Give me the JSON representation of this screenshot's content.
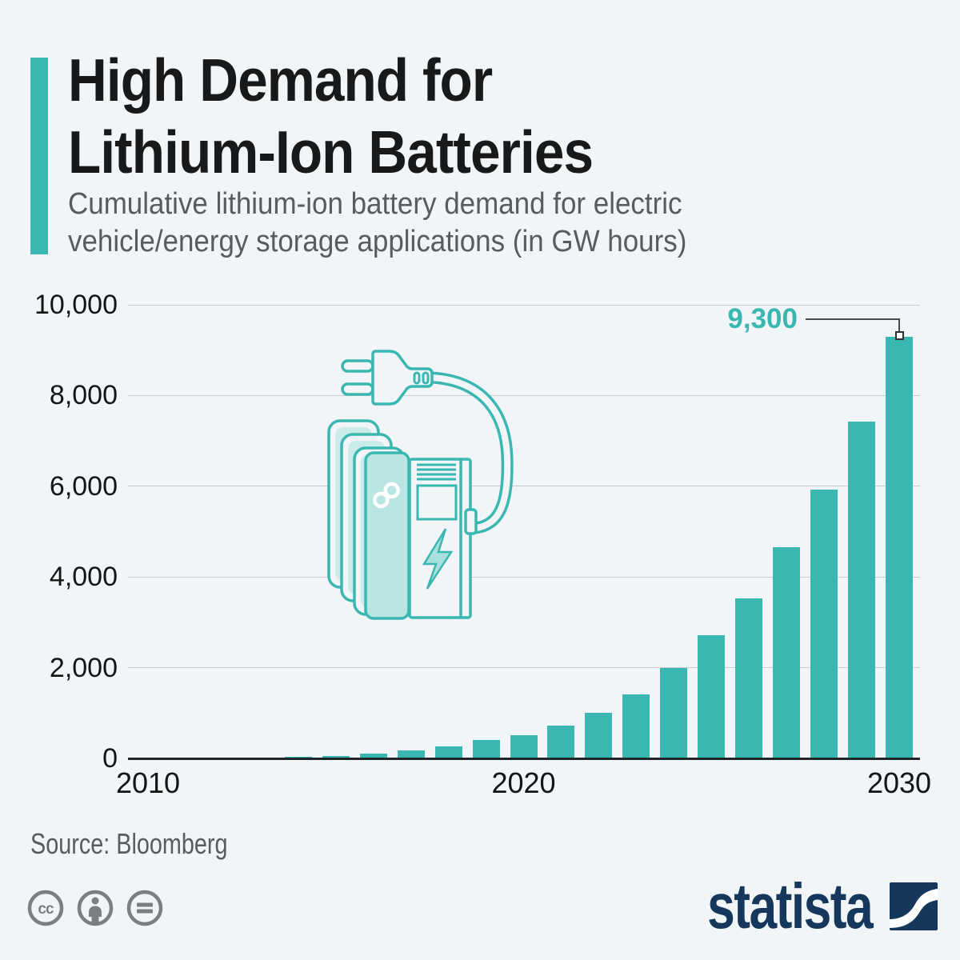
{
  "header": {
    "title_lines": [
      "High Demand for",
      "Lithium-Ion Batteries"
    ],
    "subtitle_lines": [
      "Cumulative lithium-ion battery demand for electric",
      "vehicle/energy storage applications (in GW hours)"
    ]
  },
  "chart_data": {
    "type": "bar",
    "title": "High Demand for Lithium-Ion Batteries",
    "subtitle": "Cumulative lithium-ion battery demand for electric vehicle/energy storage applications (in GW hours)",
    "unit": "GW hours",
    "xlabel": "",
    "ylabel": "",
    "ylim": [
      0,
      10000
    ],
    "grid": true,
    "categories": [
      2010,
      2011,
      2012,
      2013,
      2014,
      2015,
      2016,
      2017,
      2018,
      2019,
      2020,
      2021,
      2022,
      2023,
      2024,
      2025,
      2026,
      2027,
      2028,
      2029,
      2030
    ],
    "values": [
      0,
      0,
      5,
      15,
      30,
      60,
      110,
      170,
      270,
      400,
      520,
      720,
      1000,
      1410,
      2000,
      2710,
      3530,
      4650,
      5930,
      7420,
      9300
    ],
    "y_tick_values": [
      0,
      2000,
      4000,
      6000,
      8000,
      10000
    ],
    "y_tick_labels": [
      "0",
      "2,000",
      "4,000",
      "6,000",
      "8,000",
      "10,000"
    ],
    "x_ticks": [
      {
        "label": "2010",
        "year": 2010
      },
      {
        "label": "2020",
        "year": 2020
      },
      {
        "label": "2030",
        "year": 2030
      }
    ],
    "annotation": {
      "label": "9,300",
      "year": 2030,
      "value": 9300
    },
    "legend": null
  },
  "footer": {
    "source": "Source: Bloomberg",
    "brand_name": "statista"
  },
  "icons": {
    "license": [
      "cc-icon",
      "attribution-icon",
      "equal-sign-icon"
    ],
    "illustration": [
      "power-plug-icon",
      "charging-cable",
      "battery-stack-icon",
      "infinity-icon",
      "charging-station-icon",
      "lightning-bolt-icon"
    ],
    "brand": [
      "statista-logo-icon"
    ]
  },
  "colors": {
    "background": "#f1f5f8",
    "accent_teal": "#3ab7b1",
    "battery_fill_light": "#b9e6e3",
    "title_text": "#191919",
    "subtitle_text": "#595b5d",
    "axis_text": "#151515",
    "gridline": "#c8cdd2",
    "axis_line": "#1f262b",
    "annotation_line": "#4a4a4a",
    "brand_navy": "#16375c",
    "license_gray": "#7b7f80"
  }
}
